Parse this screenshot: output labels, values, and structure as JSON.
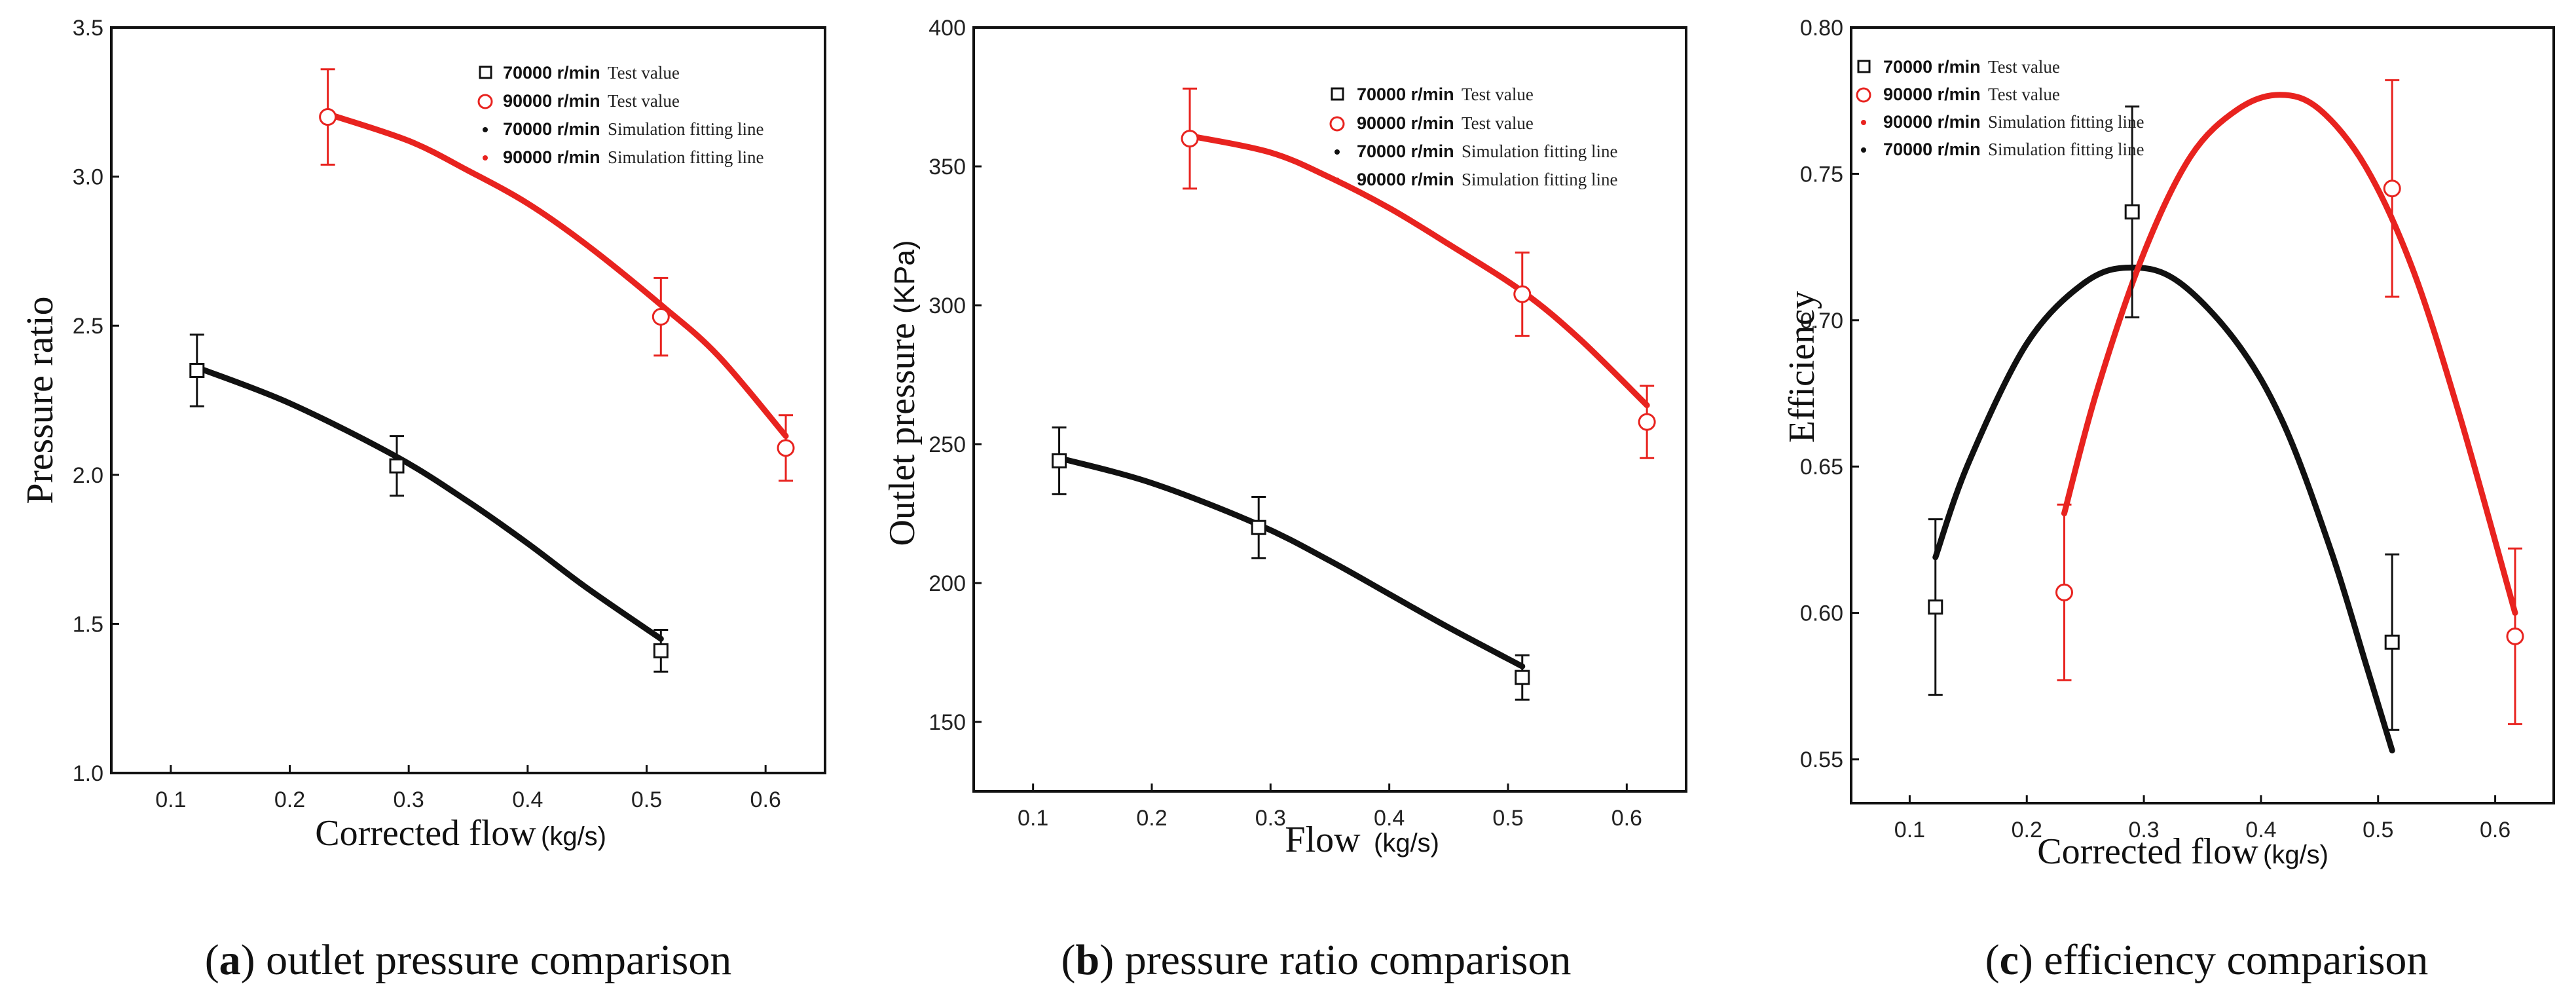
{
  "colors": {
    "black": "#111111",
    "red": "#e8231f"
  },
  "chart_data": [
    {
      "type": "scatter",
      "caption_letter": "a",
      "caption_rest": "outlet pressure comparison",
      "xlabel": "Corrected flow",
      "xlabel_unit": "(kg/s)",
      "ylabel": "Pressure ratio",
      "ylabel_unit": "",
      "xlim": [
        0.05,
        0.65
      ],
      "ylim": [
        1.0,
        3.5
      ],
      "x_ticks": [
        "0.1",
        "0.2",
        "0.3",
        "0.4",
        "0.5",
        "0.6"
      ],
      "y_ticks": [
        "1.0",
        "1.5",
        "2.0",
        "2.5",
        "3.0",
        "3.5"
      ],
      "legend": {
        "position": "top-right",
        "entries": [
          {
            "speed": "70000 r/min",
            "text": "Test value",
            "marker": "square",
            "color": "black"
          },
          {
            "speed": "90000 r/min",
            "text": "Test value",
            "marker": "circle",
            "color": "red"
          },
          {
            "speed": "70000 r/min",
            "text": "Simulation fitting line",
            "marker": "dot",
            "color": "black"
          },
          {
            "speed": "90000 r/min",
            "text": "Simulation fitting line",
            "marker": "dot",
            "color": "red"
          }
        ]
      },
      "test_series": [
        {
          "speed": "70000 r/min",
          "color": "black",
          "marker": "square",
          "points": [
            {
              "x": 0.122,
              "y": 2.35,
              "err": 0.12
            },
            {
              "x": 0.29,
              "y": 2.03,
              "err": 0.1
            },
            {
              "x": 0.512,
              "y": 1.41,
              "err": 0.07
            }
          ]
        },
        {
          "speed": "90000 r/min",
          "color": "red",
          "marker": "circle",
          "points": [
            {
              "x": 0.232,
              "y": 3.2,
              "err": 0.16
            },
            {
              "x": 0.512,
              "y": 2.53,
              "err": 0.13
            },
            {
              "x": 0.617,
              "y": 2.09,
              "err": 0.11
            }
          ]
        }
      ],
      "fit_series": [
        {
          "speed": "70000 r/min",
          "color": "black",
          "points": [
            [
              0.122,
              2.36
            ],
            [
              0.2,
              2.24
            ],
            [
              0.29,
              2.06
            ],
            [
              0.35,
              1.91
            ],
            [
              0.4,
              1.77
            ],
            [
              0.45,
              1.62
            ],
            [
              0.512,
              1.45
            ]
          ]
        },
        {
          "speed": "90000 r/min",
          "color": "red",
          "points": [
            [
              0.232,
              3.21
            ],
            [
              0.3,
              3.12
            ],
            [
              0.35,
              3.02
            ],
            [
              0.4,
              2.91
            ],
            [
              0.45,
              2.77
            ],
            [
              0.512,
              2.57
            ],
            [
              0.56,
              2.4
            ],
            [
              0.617,
              2.13
            ]
          ]
        }
      ]
    },
    {
      "type": "scatter",
      "caption_letter": "b",
      "caption_rest": "pressure ratio comparison",
      "xlabel": "Flow",
      "xlabel_unit": "(kg/s)",
      "ylabel": "Outlet pressure",
      "ylabel_unit": "(KPa)",
      "xlim": [
        0.05,
        0.65
      ],
      "ylim": [
        125,
        400
      ],
      "x_ticks": [
        "0.1",
        "0.2",
        "0.3",
        "0.4",
        "0.5",
        "0.6"
      ],
      "y_ticks": [
        "150",
        "200",
        "250",
        "300",
        "350",
        "400"
      ],
      "legend": {
        "position": "top-right",
        "entries": [
          {
            "speed": "70000 r/min",
            "text": "Test value",
            "marker": "square",
            "color": "black"
          },
          {
            "speed": "90000 r/min",
            "text": "Test value",
            "marker": "circle",
            "color": "red"
          },
          {
            "speed": "70000 r/min",
            "text": "Simulation fitting line",
            "marker": "dot",
            "color": "black"
          },
          {
            "speed": "90000 r/min",
            "text": "Simulation fitting line",
            "marker": "dot",
            "color": "red"
          }
        ]
      },
      "test_series": [
        {
          "speed": "70000 r/min",
          "color": "black",
          "marker": "square",
          "points": [
            {
              "x": 0.122,
              "y": 244,
              "err": 12
            },
            {
              "x": 0.29,
              "y": 220,
              "err": 11
            },
            {
              "x": 0.512,
              "y": 166,
              "err": 8
            }
          ]
        },
        {
          "speed": "90000 r/min",
          "color": "red",
          "marker": "circle",
          "points": [
            {
              "x": 0.232,
              "y": 360,
              "err": 18
            },
            {
              "x": 0.512,
              "y": 304,
              "err": 15
            },
            {
              "x": 0.617,
              "y": 258,
              "err": 13
            }
          ]
        }
      ],
      "fit_series": [
        {
          "speed": "70000 r/min",
          "color": "black",
          "points": [
            [
              0.122,
              245
            ],
            [
              0.2,
              236
            ],
            [
              0.29,
              221
            ],
            [
              0.35,
              208
            ],
            [
              0.4,
              196
            ],
            [
              0.45,
              184
            ],
            [
              0.512,
              170
            ]
          ]
        },
        {
          "speed": "90000 r/min",
          "color": "red",
          "points": [
            [
              0.232,
              361
            ],
            [
              0.3,
              355
            ],
            [
              0.35,
              346
            ],
            [
              0.4,
              335
            ],
            [
              0.45,
              322
            ],
            [
              0.512,
              305
            ],
            [
              0.56,
              288
            ],
            [
              0.617,
              264
            ]
          ]
        }
      ]
    },
    {
      "type": "scatter",
      "caption_letter": "c",
      "caption_rest": "efficiency comparison",
      "xlabel": "Corrected flow",
      "xlabel_unit": "(kg/s)",
      "ylabel": "Efficiency",
      "ylabel_unit": "",
      "xlim": [
        0.05,
        0.65
      ],
      "ylim": [
        0.535,
        0.8
      ],
      "x_ticks": [
        "0.1",
        "0.2",
        "0.3",
        "0.4",
        "0.5",
        "0.6"
      ],
      "y_ticks": [
        "0.55",
        "0.60",
        "0.65",
        "0.70",
        "0.75",
        "0.80"
      ],
      "legend": {
        "position": "top-left",
        "entries": [
          {
            "speed": "70000 r/min",
            "text": "Test value",
            "marker": "square",
            "color": "black"
          },
          {
            "speed": "90000 r/min",
            "text": "Test value",
            "marker": "circle",
            "color": "red"
          },
          {
            "speed": "90000 r/min",
            "text": "Simulation fitting line",
            "marker": "dot",
            "color": "red"
          },
          {
            "speed": "70000 r/min",
            "text": "Simulation fitting line",
            "marker": "dot",
            "color": "black"
          }
        ]
      },
      "test_series": [
        {
          "speed": "70000 r/min",
          "color": "black",
          "marker": "square",
          "points": [
            {
              "x": 0.122,
              "y": 0.602,
              "err": 0.03
            },
            {
              "x": 0.29,
              "y": 0.737,
              "err": 0.036
            },
            {
              "x": 0.512,
              "y": 0.59,
              "err": 0.03
            }
          ]
        },
        {
          "speed": "90000 r/min",
          "color": "red",
          "marker": "circle",
          "points": [
            {
              "x": 0.232,
              "y": 0.607,
              "err": 0.03
            },
            {
              "x": 0.512,
              "y": 0.745,
              "err": 0.037
            },
            {
              "x": 0.617,
              "y": 0.592,
              "err": 0.03
            }
          ]
        }
      ],
      "fit_series": [
        {
          "speed": "70000 r/min",
          "color": "black",
          "points": [
            [
              0.122,
              0.619
            ],
            [
              0.15,
              0.651
            ],
            [
              0.2,
              0.692
            ],
            [
              0.25,
              0.713
            ],
            [
              0.29,
              0.718
            ],
            [
              0.33,
              0.713
            ],
            [
              0.38,
              0.692
            ],
            [
              0.42,
              0.664
            ],
            [
              0.46,
              0.621
            ],
            [
              0.49,
              0.582
            ],
            [
              0.512,
              0.553
            ]
          ]
        },
        {
          "speed": "90000 r/min",
          "color": "red",
          "points": [
            [
              0.232,
              0.634
            ],
            [
              0.26,
              0.676
            ],
            [
              0.3,
              0.723
            ],
            [
              0.34,
              0.756
            ],
            [
              0.38,
              0.772
            ],
            [
              0.416,
              0.777
            ],
            [
              0.45,
              0.772
            ],
            [
              0.49,
              0.752
            ],
            [
              0.53,
              0.717
            ],
            [
              0.57,
              0.667
            ],
            [
              0.617,
              0.6
            ]
          ]
        }
      ]
    }
  ]
}
